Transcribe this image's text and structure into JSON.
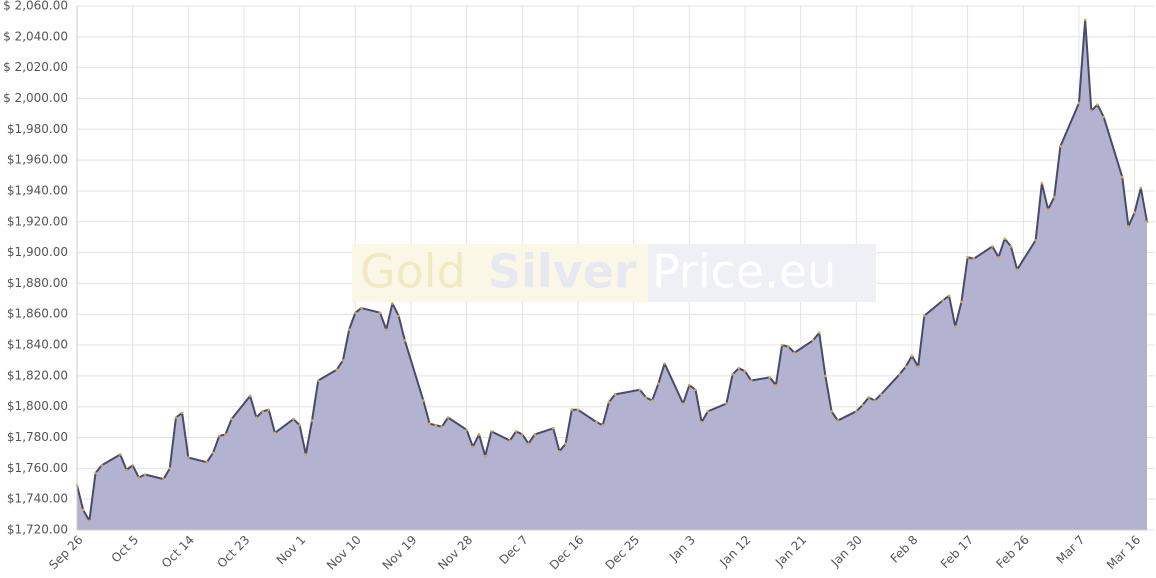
{
  "chart_data": {
    "type": "area",
    "watermark": [
      "Gold",
      "Silver",
      "Price.eu"
    ],
    "x": [
      "Sep 26",
      "Sep 27",
      "Sep 28",
      "Sep 29",
      "Sep 30",
      "Oct 3",
      "Oct 4",
      "Oct 5",
      "Oct 6",
      "Oct 7",
      "Oct 10",
      "Oct 11",
      "Oct 12",
      "Oct 13",
      "Oct 14",
      "Oct 17",
      "Oct 18",
      "Oct 19",
      "Oct 20",
      "Oct 21",
      "Oct 24",
      "Oct 25",
      "Oct 26",
      "Oct 27",
      "Oct 28",
      "Oct 31",
      "Nov 1",
      "Nov 2",
      "Nov 3",
      "Nov 4",
      "Nov 7",
      "Nov 8",
      "Nov 9",
      "Nov 10",
      "Nov 11",
      "Nov 14",
      "Nov 15",
      "Nov 16",
      "Nov 17",
      "Nov 18",
      "Nov 21",
      "Nov 22",
      "Nov 23",
      "Nov 24",
      "Nov 25",
      "Nov 28",
      "Nov 29",
      "Nov 30",
      "Dec 1",
      "Dec 2",
      "Dec 5",
      "Dec 6",
      "Dec 7",
      "Dec 8",
      "Dec 9",
      "Dec 12",
      "Dec 13",
      "Dec 14",
      "Dec 15",
      "Dec 16",
      "Dec 19",
      "Dec 20",
      "Dec 21",
      "Dec 22",
      "Dec 26",
      "Dec 27",
      "Dec 28",
      "Dec 29",
      "Dec 30",
      "Jan 2",
      "Jan 3",
      "Jan 4",
      "Jan 5",
      "Jan 6",
      "Jan 9",
      "Jan 10",
      "Jan 11",
      "Jan 12",
      "Jan 13",
      "Jan 16",
      "Jan 17",
      "Jan 18",
      "Jan 19",
      "Jan 20",
      "Jan 23",
      "Jan 24",
      "Jan 25",
      "Jan 26",
      "Jan 27",
      "Jan 30",
      "Jan 31",
      "Feb 1",
      "Feb 2",
      "Feb 3",
      "Feb 6",
      "Feb 7",
      "Feb 8",
      "Feb 9",
      "Feb 10",
      "Feb 13",
      "Feb 14",
      "Feb 15",
      "Feb 16",
      "Feb 17",
      "Feb 18",
      "Feb 21",
      "Feb 22",
      "Feb 23",
      "Feb 24",
      "Feb 25",
      "Feb 28",
      "Mar 1",
      "Mar 2",
      "Mar 3",
      "Mar 4",
      "Mar 7",
      "Mar 8",
      "Mar 9",
      "Mar 10",
      "Mar 11",
      "Mar 14",
      "Mar 15",
      "Mar 16",
      "Mar 17",
      "Mar 18"
    ],
    "values": [
      1749,
      1733,
      1726,
      1757,
      1762,
      1769,
      1759,
      1762,
      1754,
      1756,
      1753,
      1760,
      1793,
      1796,
      1767,
      1764,
      1770,
      1781,
      1782,
      1792,
      1807,
      1793,
      1797,
      1798,
      1783,
      1792,
      1788,
      1769,
      1791,
      1817,
      1824,
      1830,
      1850,
      1861,
      1864,
      1861,
      1850,
      1867,
      1859,
      1843,
      1804,
      1789,
      1788,
      1787,
      1793,
      1785,
      1774,
      1782,
      1768,
      1784,
      1778,
      1784,
      1782,
      1776,
      1782,
      1786,
      1771,
      1776,
      1798,
      1798,
      1790,
      1788,
      1803,
      1808,
      1811,
      1806,
      1804,
      1815,
      1828,
      1802,
      1814,
      1811,
      1790,
      1797,
      1802,
      1821,
      1825,
      1823,
      1817,
      1819,
      1814,
      1840,
      1839,
      1835,
      1843,
      1848,
      1820,
      1797,
      1791,
      1797,
      1801,
      1806,
      1804,
      1808,
      1821,
      1826,
      1833,
      1826,
      1859,
      1869,
      1872,
      1852,
      1868,
      1897,
      1896,
      1904,
      1897,
      1909,
      1904,
      1889,
      1908,
      1945,
      1928,
      1936,
      1969,
      1997,
      2051,
      1992,
      1996,
      1988,
      1949,
      1917,
      1926,
      1942,
      1920
    ],
    "color": "#b3b3d1",
    "line_color": "#4a4a6a",
    "marker_color": "#d9a441",
    "ylim": [
      1720,
      2060
    ],
    "yticks": [
      {
        "value": 1720,
        "label": "$1,720.00"
      },
      {
        "value": 1740,
        "label": "$1,740.00"
      },
      {
        "value": 1760,
        "label": "$1,760.00"
      },
      {
        "value": 1780,
        "label": "$1,780.00"
      },
      {
        "value": 1800,
        "label": "$1,800.00"
      },
      {
        "value": 1820,
        "label": "$1,820.00"
      },
      {
        "value": 1840,
        "label": "$1,840.00"
      },
      {
        "value": 1860,
        "label": "$1,860.00"
      },
      {
        "value": 1880,
        "label": "$1,880.00"
      },
      {
        "value": 1900,
        "label": "$1,900.00"
      },
      {
        "value": 1920,
        "label": "$1,920.00"
      },
      {
        "value": 1940,
        "label": "$1,940.00"
      },
      {
        "value": 1960,
        "label": "$1,960.00"
      },
      {
        "value": 1980,
        "label": "$1,980.00"
      },
      {
        "value": 2000,
        "label": "$ 2,000.00"
      },
      {
        "value": 2020,
        "label": "$ 2,020.00"
      },
      {
        "value": 2040,
        "label": "$ 2,040.00"
      },
      {
        "value": 2060,
        "label": "$ 2,060.00"
      }
    ],
    "xticks": [
      "Sep 26",
      "Oct 5",
      "Oct 14",
      "Oct 23",
      "Nov 1",
      "Nov 10",
      "Nov 19",
      "Nov 28",
      "Dec 7",
      "Dec 16",
      "Dec 25",
      "Jan 3",
      "Jan 12",
      "Jan 21",
      "Jan 30",
      "Feb 8",
      "Feb 17",
      "Feb 26",
      "Mar 7",
      "Mar 16"
    ],
    "grid": true
  }
}
